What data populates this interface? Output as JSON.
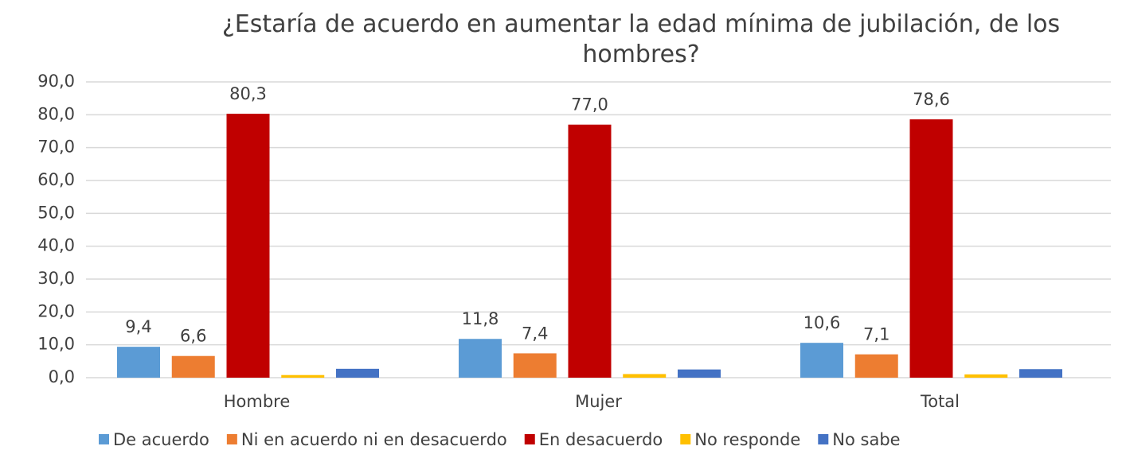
{
  "chart_data": {
    "type": "bar",
    "title": "¿Estaría de acuerdo en aumentar la edad mínima de jubilación, de los hombres?",
    "categories": [
      "Hombre",
      "Mujer",
      "Total"
    ],
    "series": [
      {
        "name": "De acuerdo",
        "color": "#5b9bd5",
        "values": [
          9.4,
          11.8,
          10.6
        ],
        "value_labels": [
          "9,4",
          "11,8",
          "10,6"
        ]
      },
      {
        "name": "Ni en acuerdo ni en desacuerdo",
        "color": "#ed7d31",
        "values": [
          6.6,
          7.4,
          7.1
        ],
        "value_labels": [
          "6,6",
          "7,4",
          "7,1"
        ]
      },
      {
        "name": "En desacuerdo",
        "color": "#c00000",
        "values": [
          80.3,
          77.0,
          78.6
        ],
        "value_labels": [
          "80,3",
          "77,0",
          "78,6"
        ]
      },
      {
        "name": "No responde",
        "color": "#ffc000",
        "values": [
          0.8,
          1.1,
          1.0
        ]
      },
      {
        "name": "No sabe",
        "color": "#4472c4",
        "values": [
          2.7,
          2.5,
          2.6
        ]
      }
    ],
    "ylim": [
      0,
      90
    ],
    "yticks": [
      {
        "value": 0,
        "label": "0,0"
      },
      {
        "value": 10,
        "label": "10,0"
      },
      {
        "value": 20,
        "label": "20,0"
      },
      {
        "value": 30,
        "label": "30,0"
      },
      {
        "value": 40,
        "label": "40,0"
      },
      {
        "value": 50,
        "label": "50,0"
      },
      {
        "value": 60,
        "label": "60,0"
      },
      {
        "value": 70,
        "label": "70,0"
      },
      {
        "value": 80,
        "label": "80,0"
      },
      {
        "value": 90,
        "label": "90,0"
      }
    ],
    "grid": true,
    "legend": "bottom"
  }
}
